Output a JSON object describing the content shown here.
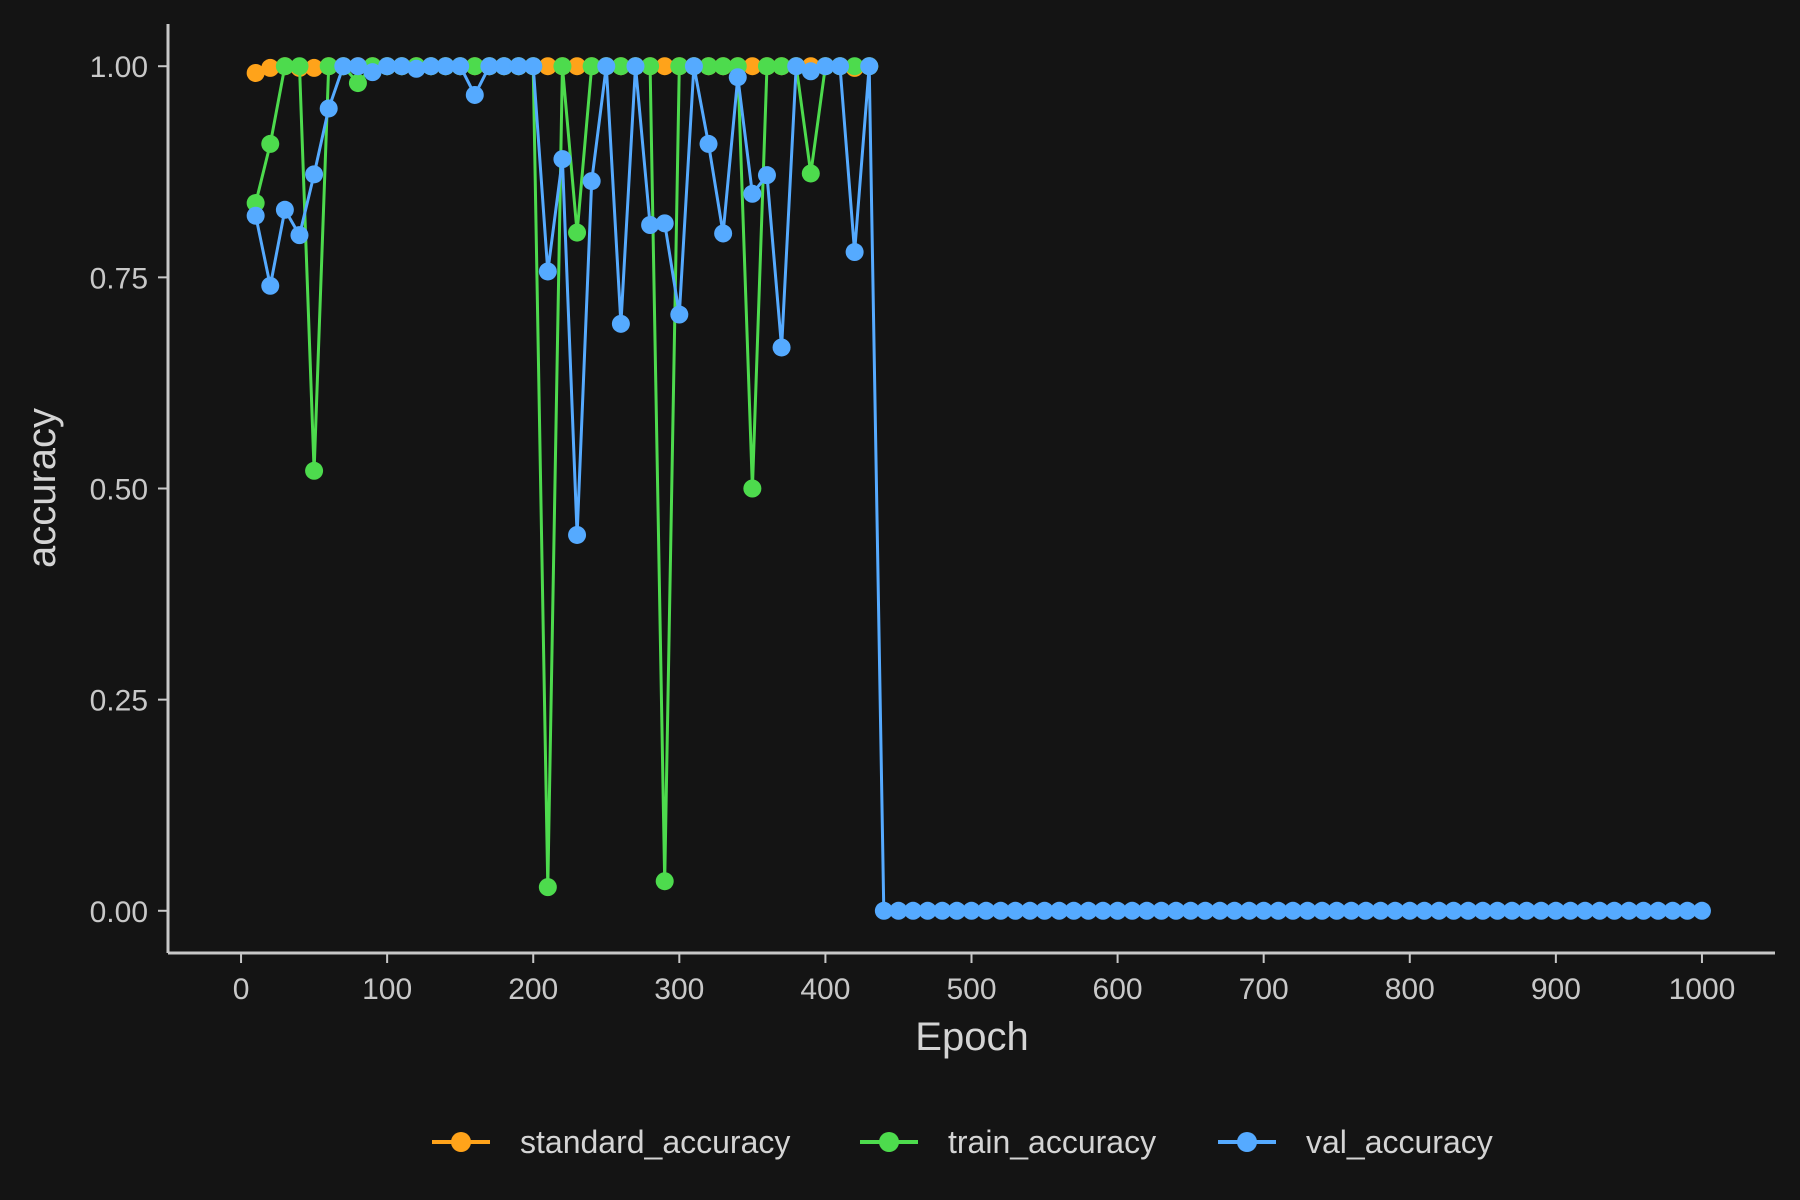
{
  "chart_data": {
    "type": "line",
    "title": "",
    "xlabel": "Epoch",
    "ylabel": "accuracy",
    "xlim": [
      -50,
      1050
    ],
    "ylim": [
      -0.05,
      1.05
    ],
    "x_ticks": [
      0,
      100,
      200,
      300,
      400,
      500,
      600,
      700,
      800,
      900,
      1000
    ],
    "x_tick_labels": [
      "0",
      "100",
      "200",
      "300",
      "400",
      "500",
      "600",
      "700",
      "800",
      "900",
      "1000"
    ],
    "y_ticks": [
      0,
      0.25,
      0.5,
      0.75,
      1.0
    ],
    "y_tick_labels": [
      "0.00",
      "0.25",
      "0.50",
      "0.75",
      "1.00"
    ],
    "grid": false,
    "legend_position": "bottom",
    "background": "#141414",
    "series": [
      {
        "name": "standard_accuracy",
        "color": "#ffa31a",
        "x": [
          10,
          20,
          30,
          40,
          50,
          60,
          70,
          80,
          90,
          100,
          110,
          120,
          130,
          140,
          150,
          160,
          170,
          180,
          190,
          200,
          210,
          220,
          230,
          240,
          250,
          260,
          270,
          280,
          290,
          300,
          310,
          320,
          330,
          340,
          350,
          360,
          370,
          380,
          390,
          400,
          410,
          420,
          430
        ],
        "values": [
          0.992,
          0.998,
          1,
          0.998,
          0.998,
          1,
          1,
          1,
          1,
          1,
          1,
          1,
          1,
          1,
          1,
          1,
          1,
          1,
          1,
          1,
          1,
          1,
          1,
          1,
          1,
          1,
          1,
          1,
          1,
          1,
          1,
          1,
          1,
          1,
          1,
          1,
          1,
          1,
          1,
          1,
          1,
          0.998,
          1
        ]
      },
      {
        "name": "train_accuracy",
        "color": "#4ddb4d",
        "x": [
          10,
          20,
          30,
          40,
          50,
          60,
          70,
          80,
          90,
          100,
          110,
          120,
          130,
          140,
          150,
          160,
          170,
          180,
          190,
          200,
          210,
          220,
          230,
          240,
          250,
          260,
          270,
          280,
          290,
          300,
          310,
          320,
          330,
          340,
          350,
          360,
          370,
          380,
          390,
          400,
          410,
          420,
          430
        ],
        "values": [
          0.838,
          0.908,
          1,
          1,
          0.521,
          1,
          1,
          0.98,
          1,
          1,
          1,
          1,
          1,
          1,
          1,
          1,
          1,
          1,
          1,
          1,
          0.028,
          1,
          0.803,
          1,
          1,
          1,
          1,
          1,
          0.035,
          1,
          1,
          1,
          1,
          1,
          0.5,
          1,
          1,
          1,
          0.873,
          1,
          1,
          1,
          1
        ]
      },
      {
        "name": "val_accuracy",
        "color": "#55aaff",
        "x": [
          10,
          20,
          30,
          40,
          50,
          60,
          70,
          80,
          90,
          100,
          110,
          120,
          130,
          140,
          150,
          160,
          170,
          180,
          190,
          200,
          210,
          220,
          230,
          240,
          250,
          260,
          270,
          280,
          290,
          300,
          310,
          320,
          330,
          340,
          350,
          360,
          370,
          380,
          390,
          400,
          410,
          420,
          430,
          440,
          450,
          460,
          470,
          480,
          490,
          500,
          510,
          520,
          530,
          540,
          550,
          560,
          570,
          580,
          590,
          600,
          610,
          620,
          630,
          640,
          650,
          660,
          670,
          680,
          690,
          700,
          710,
          720,
          730,
          740,
          750,
          760,
          770,
          780,
          790,
          800,
          810,
          820,
          830,
          840,
          850,
          860,
          870,
          880,
          890,
          900,
          910,
          920,
          930,
          940,
          950,
          960,
          970,
          980,
          990,
          1000
        ],
        "values": [
          0.823,
          0.74,
          0.83,
          0.8,
          0.872,
          0.95,
          1,
          1,
          0.993,
          1,
          1,
          0.997,
          1,
          1,
          1,
          0.966,
          1,
          1,
          1,
          1,
          0.757,
          0.89,
          0.445,
          0.864,
          1,
          0.695,
          1,
          0.812,
          0.814,
          0.706,
          1,
          0.908,
          0.802,
          0.987,
          0.849,
          0.871,
          0.667,
          1,
          0.994,
          1,
          1,
          0.78,
          1,
          0,
          0,
          0,
          0,
          0,
          0,
          0,
          0,
          0,
          0,
          0,
          0,
          0,
          0,
          0,
          0,
          0,
          0,
          0,
          0,
          0,
          0,
          0,
          0,
          0,
          0,
          0,
          0,
          0,
          0,
          0,
          0,
          0,
          0,
          0,
          0,
          0,
          0,
          0,
          0,
          0,
          0,
          0,
          0,
          0,
          0,
          0,
          0,
          0,
          0,
          0,
          0,
          0,
          0,
          0,
          0,
          0
        ]
      }
    ]
  }
}
